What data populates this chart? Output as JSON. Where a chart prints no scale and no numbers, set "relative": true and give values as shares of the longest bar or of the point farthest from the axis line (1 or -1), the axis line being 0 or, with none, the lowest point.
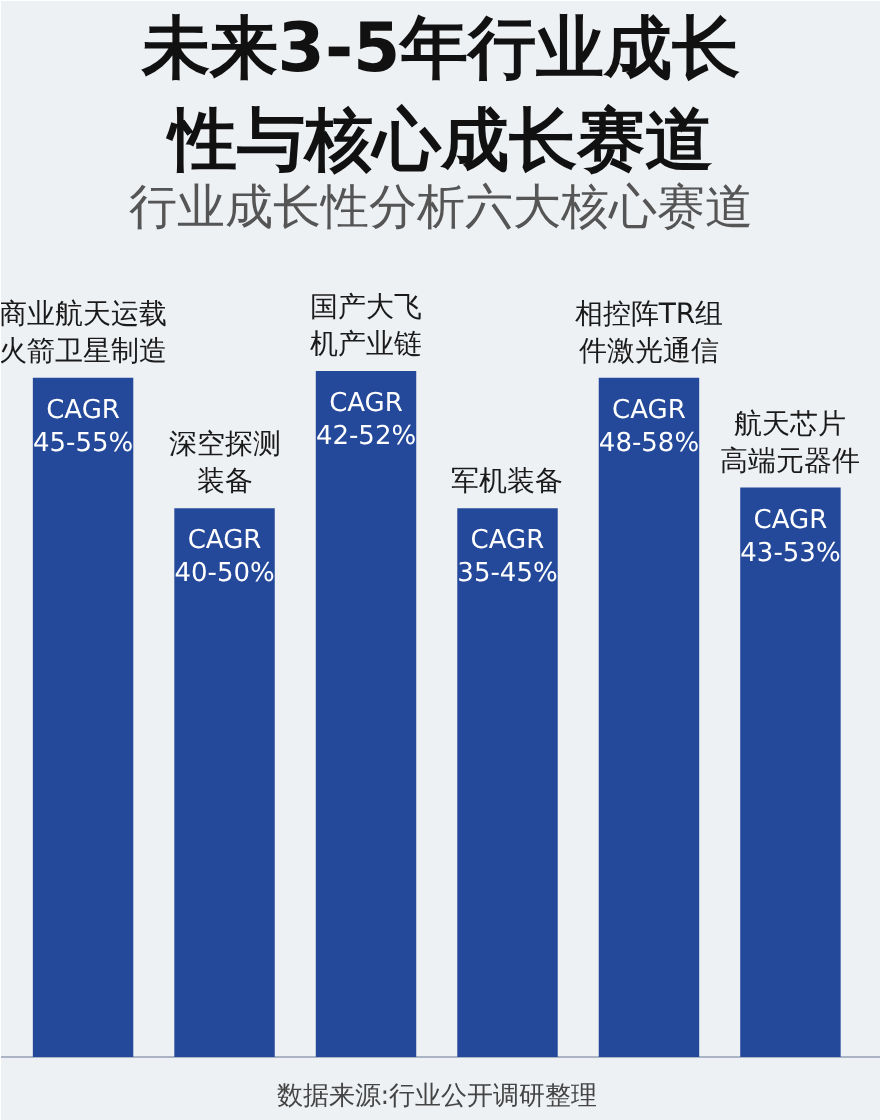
{
  "chart_data": {
    "type": "bar",
    "title": "未来3-5年行业成长性与核心成长赛道",
    "subtitle": "行业成长性分析六大核心赛道",
    "categories": [
      "商业航天运载火箭卫星制造",
      "深空探测装备",
      "国产大飞机产业链",
      "军机装备",
      "相控阵TR组件激光通信",
      "航天芯片高端元器件"
    ],
    "values": [
      0.99,
      0.8,
      1,
      0.8,
      0.99,
      0.83
    ],
    "color": "#24499a",
    "relative": true,
    "annotations": [
      {
        "text": "CAGR 45-55%",
        "x": "商业航天运载火箭卫星制造",
        "y": 0.99
      },
      {
        "text": "CAGR 40-50%",
        "x": "深空探测装备",
        "y": 0.8
      },
      {
        "text": "CAGR 42-52%",
        "x": "国产大飞机产业链",
        "y": 1
      },
      {
        "text": "CAGR 35-45%",
        "x": "军机装备",
        "y": 0.8
      },
      {
        "text": "CAGR 48-58%",
        "x": "相控阵TR组件激光通信",
        "y": 0.99
      },
      {
        "text": "CAGR 43-53%",
        "x": "航天芯片高端元器件",
        "y": 0.83
      },
      "数据来源:行业公开调研整理"
    ]
  }
}
